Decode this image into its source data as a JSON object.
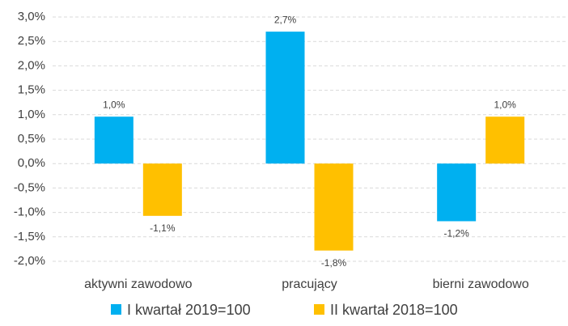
{
  "chart_data": {
    "type": "bar",
    "categories": [
      "aktywni zawodowo",
      "pracujący",
      "bierni zawodowo"
    ],
    "series": [
      {
        "name": "I kwartał 2019=100",
        "color": "#00b0f0",
        "values": [
          0.96,
          2.7,
          -1.18
        ],
        "value_labels": [
          "1,0%",
          "2,7%",
          "-1,2%"
        ]
      },
      {
        "name": "II kwartał 2018=100",
        "color": "#ffc000",
        "values": [
          -1.07,
          -1.78,
          0.96
        ],
        "value_labels": [
          "-1,1%",
          "-1,8%",
          "1,0%"
        ]
      }
    ],
    "ylim": [
      -2,
      3
    ],
    "yticks": [
      {
        "value": -2,
        "label": "-2,0%"
      },
      {
        "value": -1.5,
        "label": "-1,5%"
      },
      {
        "value": -1,
        "label": "-1,0%"
      },
      {
        "value": -0.5,
        "label": "-0,5%"
      },
      {
        "value": 0,
        "label": "0,0%"
      },
      {
        "value": 0.5,
        "label": "0,5%"
      },
      {
        "value": 1,
        "label": "1,0%"
      },
      {
        "value": 1.5,
        "label": "1,5%"
      },
      {
        "value": 2,
        "label": "2,0%"
      },
      {
        "value": 2.5,
        "label": "2,5%"
      },
      {
        "value": 3,
        "label": "3,0%"
      }
    ],
    "grid": true
  }
}
